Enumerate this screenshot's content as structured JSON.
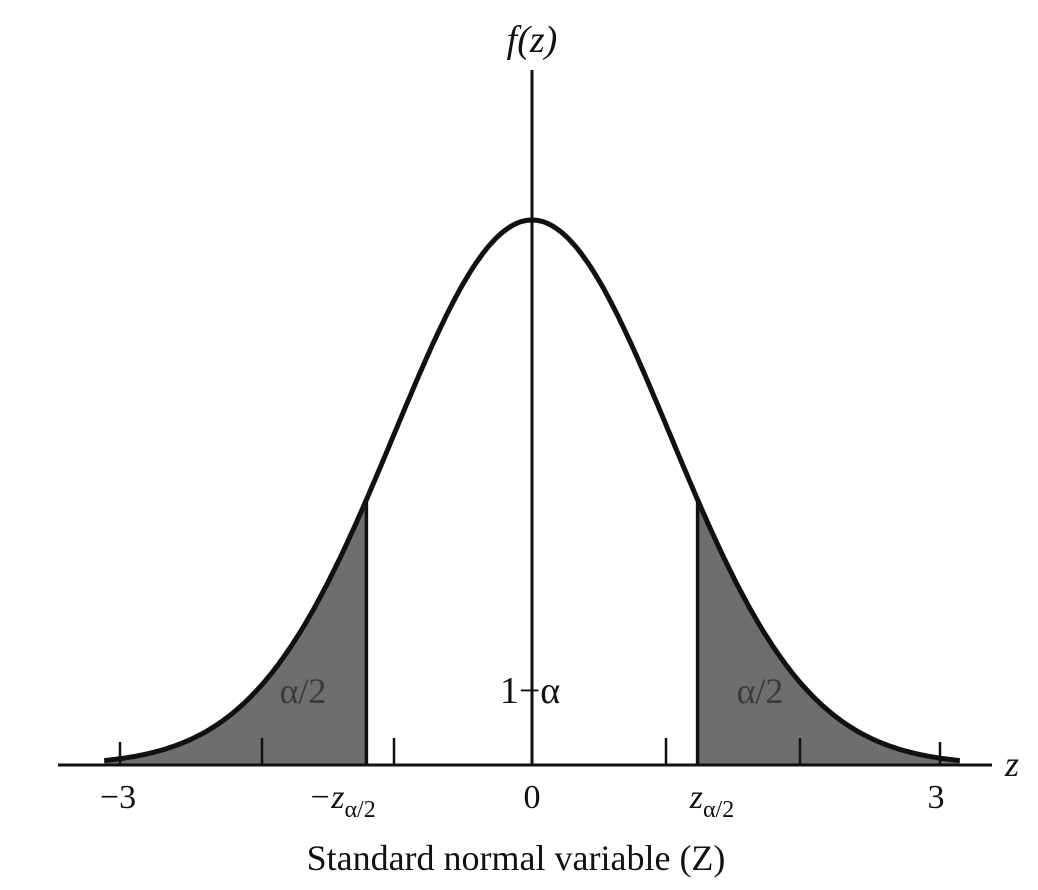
{
  "diagram": {
    "y_axis_label": "f(z)",
    "x_axis_label": "z",
    "caption": "Standard normal variable (Z)",
    "center_region_label": "1−α",
    "left_tail_label": "α/2",
    "right_tail_label": "α/2",
    "tick_labels": {
      "neg_three": "−3",
      "neg_z": "−z",
      "zero": "0",
      "pos_z": "z",
      "pos_three": "3",
      "z_subscript": "α/2"
    },
    "z_critical": 1.2,
    "x_range": [
      -3.1,
      3.1
    ],
    "tail_shading": "#6e6e6e"
  }
}
